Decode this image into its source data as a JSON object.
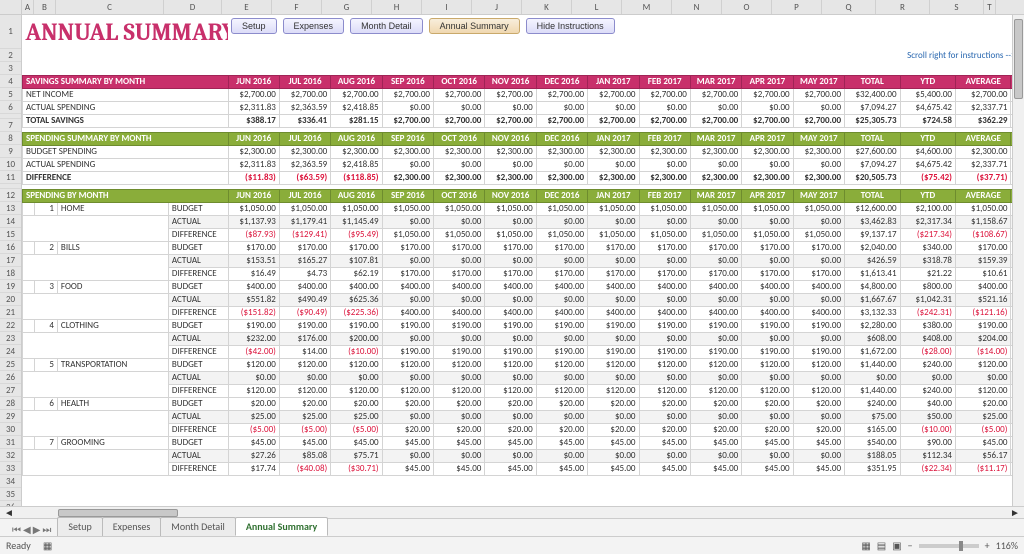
{
  "title": "ANNUAL SUMMARY",
  "buttons": [
    "Setup",
    "Expenses",
    "Month Detail",
    "Annual Summary",
    "Hide Instructions"
  ],
  "active_button": 3,
  "instr_text": "Scroll right for instructions -->",
  "col_letters": [
    "A",
    "B",
    "C",
    "D",
    "E",
    "F",
    "G",
    "H",
    "I",
    "J",
    "K",
    "L",
    "M",
    "N",
    "O",
    "P",
    "Q",
    "R",
    "S",
    "T"
  ],
  "months": [
    "JUN 2016",
    "JUL 2016",
    "AUG 2016",
    "SEP 2016",
    "OCT 2016",
    "NOV 2016",
    "DEC 2016",
    "JAN 2017",
    "FEB 2017",
    "MAR 2017",
    "APR 2017",
    "MAY 2017"
  ],
  "totals_hdr": [
    "TOTAL",
    "YTD",
    "AVERAGE"
  ],
  "savings": {
    "title": "SAVINGS SUMMARY BY MONTH",
    "rows": [
      {
        "label": "NET INCOME",
        "vals": [
          "$2,700.00",
          "$2,700.00",
          "$2,700.00",
          "$2,700.00",
          "$2,700.00",
          "$2,700.00",
          "$2,700.00",
          "$2,700.00",
          "$2,700.00",
          "$2,700.00",
          "$2,700.00",
          "$2,700.00",
          "$32,400.00",
          "$5,400.00",
          "$2,700.00"
        ]
      },
      {
        "label": "ACTUAL SPENDING",
        "vals": [
          "$2,311.83",
          "$2,363.59",
          "$2,418.85",
          "$0.00",
          "$0.00",
          "$0.00",
          "$0.00",
          "$0.00",
          "$0.00",
          "$0.00",
          "$0.00",
          "$0.00",
          "$7,094.27",
          "$4,675.42",
          "$2,337.71"
        ]
      },
      {
        "label": "TOTAL SAVINGS",
        "bold": true,
        "vals": [
          "$388.17",
          "$336.41",
          "$281.15",
          "$2,700.00",
          "$2,700.00",
          "$2,700.00",
          "$2,700.00",
          "$2,700.00",
          "$2,700.00",
          "$2,700.00",
          "$2,700.00",
          "$2,700.00",
          "$25,305.73",
          "$724.58",
          "$362.29"
        ]
      }
    ]
  },
  "spending_summary": {
    "title": "SPENDING SUMMARY BY MONTH",
    "rows": [
      {
        "label": "BUDGET SPENDING",
        "vals": [
          "$2,300.00",
          "$2,300.00",
          "$2,300.00",
          "$2,300.00",
          "$2,300.00",
          "$2,300.00",
          "$2,300.00",
          "$2,300.00",
          "$2,300.00",
          "$2,300.00",
          "$2,300.00",
          "$2,300.00",
          "$27,600.00",
          "$4,600.00",
          "$2,300.00"
        ]
      },
      {
        "label": "ACTUAL SPENDING",
        "vals": [
          "$2,311.83",
          "$2,363.59",
          "$2,418.85",
          "$0.00",
          "$0.00",
          "$0.00",
          "$0.00",
          "$0.00",
          "$0.00",
          "$0.00",
          "$0.00",
          "$0.00",
          "$7,094.27",
          "$4,675.42",
          "$2,337.71"
        ]
      },
      {
        "label": "DIFFERENCE",
        "bold": true,
        "vals": [
          "($11.83)",
          "($63.59)",
          "($118.85)",
          "$2,300.00",
          "$2,300.00",
          "$2,300.00",
          "$2,300.00",
          "$2,300.00",
          "$2,300.00",
          "$2,300.00",
          "$2,300.00",
          "$2,300.00",
          "$20,505.73",
          "($75.42)",
          "($37.71)"
        ],
        "neg": [
          0,
          1,
          2,
          13,
          14
        ]
      }
    ]
  },
  "spending_by_month": {
    "title": "SPENDING BY MONTH",
    "cats": [
      {
        "n": "1",
        "name": "HOME",
        "rows": [
          {
            "t": "BUDGET",
            "v": [
              "$1,050.00",
              "$1,050.00",
              "$1,050.00",
              "$1,050.00",
              "$1,050.00",
              "$1,050.00",
              "$1,050.00",
              "$1,050.00",
              "$1,050.00",
              "$1,050.00",
              "$1,050.00",
              "$1,050.00",
              "$12,600.00",
              "$2,100.00",
              "$1,050.00"
            ]
          },
          {
            "t": "ACTUAL",
            "v": [
              "$1,137.93",
              "$1,179.41",
              "$1,145.49",
              "$0.00",
              "$0.00",
              "$0.00",
              "$0.00",
              "$0.00",
              "$0.00",
              "$0.00",
              "$0.00",
              "$0.00",
              "$3,462.83",
              "$2,317.34",
              "$1,158.67"
            ],
            "shade": true
          },
          {
            "t": "DIFFERENCE",
            "v": [
              "($87.93)",
              "($129.41)",
              "($95.49)",
              "$1,050.00",
              "$1,050.00",
              "$1,050.00",
              "$1,050.00",
              "$1,050.00",
              "$1,050.00",
              "$1,050.00",
              "$1,050.00",
              "$1,050.00",
              "$9,137.17",
              "($217.34)",
              "($108.67)"
            ],
            "neg": [
              0,
              1,
              2,
              13,
              14
            ]
          }
        ]
      },
      {
        "n": "2",
        "name": "BILLS",
        "rows": [
          {
            "t": "BUDGET",
            "v": [
              "$170.00",
              "$170.00",
              "$170.00",
              "$170.00",
              "$170.00",
              "$170.00",
              "$170.00",
              "$170.00",
              "$170.00",
              "$170.00",
              "$170.00",
              "$170.00",
              "$2,040.00",
              "$340.00",
              "$170.00"
            ]
          },
          {
            "t": "ACTUAL",
            "v": [
              "$153.51",
              "$165.27",
              "$107.81",
              "$0.00",
              "$0.00",
              "$0.00",
              "$0.00",
              "$0.00",
              "$0.00",
              "$0.00",
              "$0.00",
              "$0.00",
              "$426.59",
              "$318.78",
              "$159.39"
            ],
            "shade": true
          },
          {
            "t": "DIFFERENCE",
            "v": [
              "$16.49",
              "$4.73",
              "$62.19",
              "$170.00",
              "$170.00",
              "$170.00",
              "$170.00",
              "$170.00",
              "$170.00",
              "$170.00",
              "$170.00",
              "$170.00",
              "$1,613.41",
              "$21.22",
              "$10.61"
            ]
          }
        ]
      },
      {
        "n": "3",
        "name": "FOOD",
        "rows": [
          {
            "t": "BUDGET",
            "v": [
              "$400.00",
              "$400.00",
              "$400.00",
              "$400.00",
              "$400.00",
              "$400.00",
              "$400.00",
              "$400.00",
              "$400.00",
              "$400.00",
              "$400.00",
              "$400.00",
              "$4,800.00",
              "$800.00",
              "$400.00"
            ]
          },
          {
            "t": "ACTUAL",
            "v": [
              "$551.82",
              "$490.49",
              "$625.36",
              "$0.00",
              "$0.00",
              "$0.00",
              "$0.00",
              "$0.00",
              "$0.00",
              "$0.00",
              "$0.00",
              "$0.00",
              "$1,667.67",
              "$1,042.31",
              "$521.16"
            ],
            "shade": true
          },
          {
            "t": "DIFFERENCE",
            "v": [
              "($151.82)",
              "($90.49)",
              "($225.36)",
              "$400.00",
              "$400.00",
              "$400.00",
              "$400.00",
              "$400.00",
              "$400.00",
              "$400.00",
              "$400.00",
              "$400.00",
              "$3,132.33",
              "($242.31)",
              "($121.16)"
            ],
            "neg": [
              0,
              1,
              2,
              13,
              14
            ]
          }
        ]
      },
      {
        "n": "4",
        "name": "CLOTHING",
        "rows": [
          {
            "t": "BUDGET",
            "v": [
              "$190.00",
              "$190.00",
              "$190.00",
              "$190.00",
              "$190.00",
              "$190.00",
              "$190.00",
              "$190.00",
              "$190.00",
              "$190.00",
              "$190.00",
              "$190.00",
              "$2,280.00",
              "$380.00",
              "$190.00"
            ]
          },
          {
            "t": "ACTUAL",
            "v": [
              "$232.00",
              "$176.00",
              "$200.00",
              "$0.00",
              "$0.00",
              "$0.00",
              "$0.00",
              "$0.00",
              "$0.00",
              "$0.00",
              "$0.00",
              "$0.00",
              "$608.00",
              "$408.00",
              "$204.00"
            ],
            "shade": true
          },
          {
            "t": "DIFFERENCE",
            "v": [
              "($42.00)",
              "$14.00",
              "($10.00)",
              "$190.00",
              "$190.00",
              "$190.00",
              "$190.00",
              "$190.00",
              "$190.00",
              "$190.00",
              "$190.00",
              "$190.00",
              "$1,672.00",
              "($28.00)",
              "($14.00)"
            ],
            "neg": [
              0,
              2,
              13,
              14
            ]
          }
        ]
      },
      {
        "n": "5",
        "name": "TRANSPORTATION",
        "rows": [
          {
            "t": "BUDGET",
            "v": [
              "$120.00",
              "$120.00",
              "$120.00",
              "$120.00",
              "$120.00",
              "$120.00",
              "$120.00",
              "$120.00",
              "$120.00",
              "$120.00",
              "$120.00",
              "$120.00",
              "$1,440.00",
              "$240.00",
              "$120.00"
            ]
          },
          {
            "t": "ACTUAL",
            "v": [
              "$0.00",
              "$0.00",
              "$0.00",
              "$0.00",
              "$0.00",
              "$0.00",
              "$0.00",
              "$0.00",
              "$0.00",
              "$0.00",
              "$0.00",
              "$0.00",
              "$0.00",
              "$0.00",
              "$0.00"
            ],
            "shade": true
          },
          {
            "t": "DIFFERENCE",
            "v": [
              "$120.00",
              "$120.00",
              "$120.00",
              "$120.00",
              "$120.00",
              "$120.00",
              "$120.00",
              "$120.00",
              "$120.00",
              "$120.00",
              "$120.00",
              "$120.00",
              "$1,440.00",
              "$240.00",
              "$120.00"
            ]
          }
        ]
      },
      {
        "n": "6",
        "name": "HEALTH",
        "rows": [
          {
            "t": "BUDGET",
            "v": [
              "$20.00",
              "$20.00",
              "$20.00",
              "$20.00",
              "$20.00",
              "$20.00",
              "$20.00",
              "$20.00",
              "$20.00",
              "$20.00",
              "$20.00",
              "$20.00",
              "$240.00",
              "$40.00",
              "$20.00"
            ]
          },
          {
            "t": "ACTUAL",
            "v": [
              "$25.00",
              "$25.00",
              "$25.00",
              "$0.00",
              "$0.00",
              "$0.00",
              "$0.00",
              "$0.00",
              "$0.00",
              "$0.00",
              "$0.00",
              "$0.00",
              "$75.00",
              "$50.00",
              "$25.00"
            ],
            "shade": true
          },
          {
            "t": "DIFFERENCE",
            "v": [
              "($5.00)",
              "($5.00)",
              "($5.00)",
              "$20.00",
              "$20.00",
              "$20.00",
              "$20.00",
              "$20.00",
              "$20.00",
              "$20.00",
              "$20.00",
              "$20.00",
              "$165.00",
              "($10.00)",
              "($5.00)"
            ],
            "neg": [
              0,
              1,
              2,
              13,
              14
            ]
          }
        ]
      },
      {
        "n": "7",
        "name": "GROOMING",
        "rows": [
          {
            "t": "BUDGET",
            "v": [
              "$45.00",
              "$45.00",
              "$45.00",
              "$45.00",
              "$45.00",
              "$45.00",
              "$45.00",
              "$45.00",
              "$45.00",
              "$45.00",
              "$45.00",
              "$45.00",
              "$540.00",
              "$90.00",
              "$45.00"
            ]
          },
          {
            "t": "ACTUAL",
            "v": [
              "$27.26",
              "$85.08",
              "$75.71",
              "$0.00",
              "$0.00",
              "$0.00",
              "$0.00",
              "$0.00",
              "$0.00",
              "$0.00",
              "$0.00",
              "$0.00",
              "$188.05",
              "$112.34",
              "$56.17"
            ],
            "shade": true
          },
          {
            "t": "DIFFERENCE",
            "v": [
              "$17.74",
              "($40.08)",
              "($30.71)",
              "$45.00",
              "$45.00",
              "$45.00",
              "$45.00",
              "$45.00",
              "$45.00",
              "$45.00",
              "$45.00",
              "$45.00",
              "$351.95",
              "($22.34)",
              "($11.17)"
            ],
            "neg": [
              1,
              2,
              13,
              14
            ]
          }
        ]
      }
    ]
  },
  "tabs": [
    "Setup",
    "Expenses",
    "Month Detail",
    "Annual Summary"
  ],
  "active_tab": 3,
  "status": "Ready",
  "zoom": "116%",
  "row_numbers_title": 1,
  "row_structure": [
    "tall",
    "",
    "",
    "",
    "",
    "",
    "sm",
    "",
    "",
    "",
    "",
    "",
    "sm",
    "",
    "",
    "",
    "",
    "",
    "",
    "",
    "",
    "",
    "",
    "",
    "",
    "",
    "",
    "",
    "",
    "",
    "",
    "",
    "",
    "",
    "",
    "",
    "",
    ""
  ]
}
